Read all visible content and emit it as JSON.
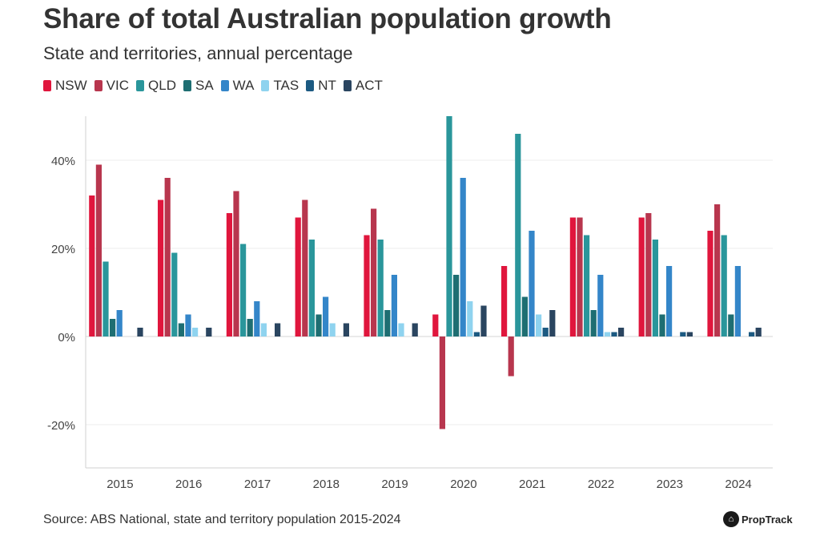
{
  "header": {
    "title": "Share of total Australian population growth",
    "subtitle": "State and territories, annual percentage"
  },
  "footer": {
    "source": "Source: ABS National, state and territory population 2015-2024",
    "brand": "PropTrack",
    "brand_icon": "house-icon"
  },
  "chart_data": {
    "type": "bar",
    "title": "Share of total Australian population growth",
    "subtitle": "State and territories, annual percentage",
    "xlabel": "",
    "ylabel": "",
    "ylim": [
      -30,
      50
    ],
    "yticks": [
      -20,
      0,
      20,
      40
    ],
    "ytick_labels": [
      "-20%",
      "0%",
      "20%",
      "40%"
    ],
    "grid": true,
    "legend_position": "top-left",
    "categories": [
      "2015",
      "2016",
      "2017",
      "2018",
      "2019",
      "2020",
      "2021",
      "2022",
      "2023",
      "2024"
    ],
    "series": [
      {
        "name": "NSW",
        "color": "#e0163d",
        "values": [
          32,
          31,
          28,
          27,
          23,
          5,
          16,
          27,
          27,
          24
        ]
      },
      {
        "name": "VIC",
        "color": "#b8364e",
        "values": [
          39,
          36,
          33,
          31,
          29,
          -21,
          -9,
          27,
          28,
          30
        ]
      },
      {
        "name": "QLD",
        "color": "#2a969b",
        "values": [
          17,
          19,
          21,
          22,
          22,
          50,
          46,
          23,
          22,
          23
        ]
      },
      {
        "name": "SA",
        "color": "#1e6e72",
        "values": [
          4,
          3,
          4,
          5,
          6,
          14,
          9,
          6,
          5,
          5
        ]
      },
      {
        "name": "WA",
        "color": "#3486c9",
        "values": [
          6,
          5,
          8,
          9,
          14,
          36,
          24,
          14,
          16,
          16
        ]
      },
      {
        "name": "TAS",
        "color": "#8fd3ef",
        "values": [
          0,
          2,
          3,
          3,
          3,
          8,
          5,
          1,
          0,
          0
        ]
      },
      {
        "name": "NT",
        "color": "#1c5a82",
        "values": [
          0,
          0,
          0,
          0,
          0,
          1,
          2,
          1,
          1,
          1
        ]
      },
      {
        "name": "ACT",
        "color": "#2a4560",
        "values": [
          2,
          2,
          3,
          3,
          3,
          7,
          6,
          2,
          1,
          2
        ]
      }
    ]
  }
}
